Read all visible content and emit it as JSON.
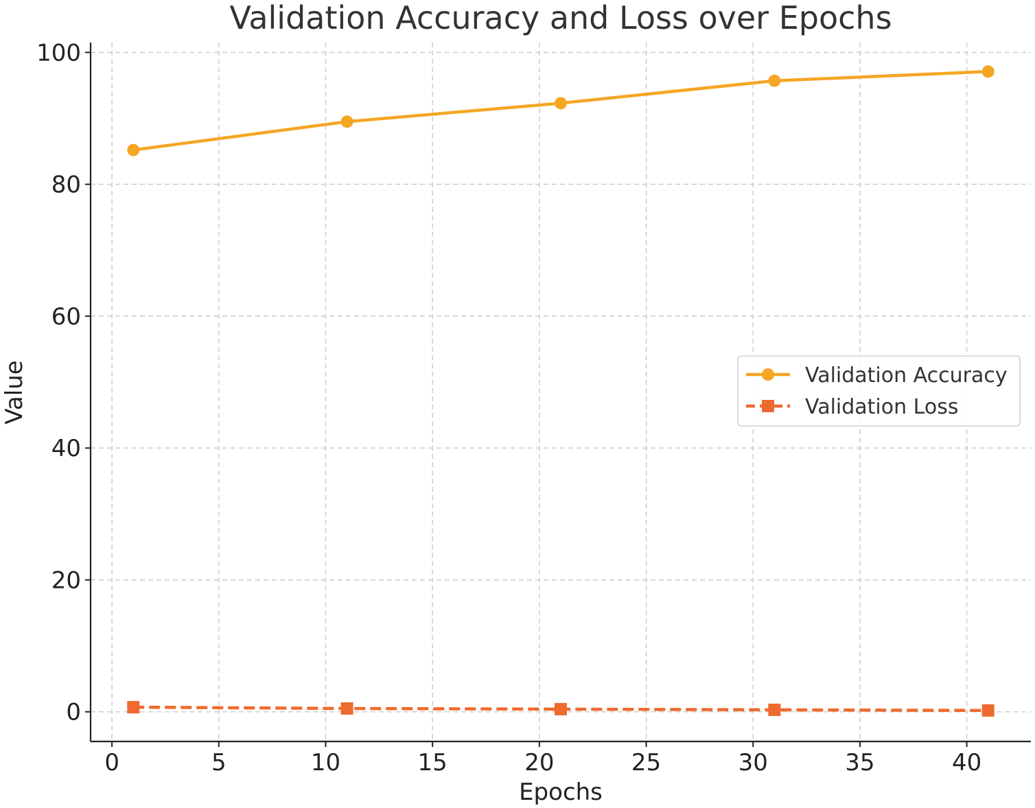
{
  "chart_data": {
    "type": "line",
    "title": "Validation Accuracy and Loss over Epochs",
    "xlabel": "Epochs",
    "ylabel": "Value",
    "xlim": [
      -1,
      43
    ],
    "ylim": [
      -4.5,
      101.5
    ],
    "xticks": [
      0,
      5,
      10,
      15,
      20,
      25,
      30,
      35,
      40
    ],
    "yticks": [
      0,
      20,
      40,
      60,
      80,
      100
    ],
    "x": [
      1,
      11,
      21,
      31,
      41
    ],
    "grid": true,
    "legend_position": "center-right",
    "series": [
      {
        "name": "Validation Accuracy",
        "values": [
          85.2,
          89.5,
          92.3,
          95.7,
          97.1
        ],
        "color": "#F5A623",
        "marker": "circle",
        "linestyle": "solid"
      },
      {
        "name": "Validation Loss",
        "values": [
          0.7,
          0.5,
          0.4,
          0.3,
          0.2
        ],
        "color": "#EE6A2E",
        "marker": "square",
        "linestyle": "dashed"
      }
    ]
  }
}
